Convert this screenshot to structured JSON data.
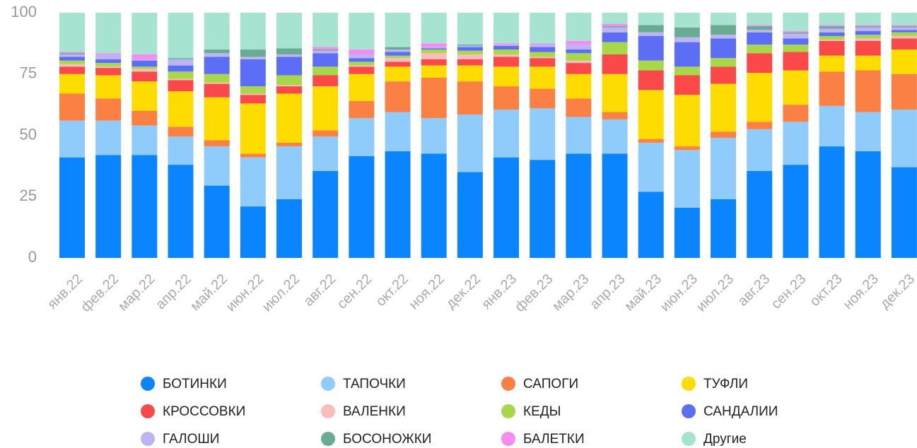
{
  "chart_data": {
    "type": "stacked_bar",
    "categories": [
      "янв.22",
      "фев.22",
      "мар.22",
      "апр.22",
      "май.22",
      "июн.22",
      "июл.22",
      "авг.22",
      "сен.22",
      "окт.22",
      "ноя.22",
      "дек.22",
      "янв.23",
      "фев.23",
      "мар.23",
      "апр.23",
      "май.23",
      "июн.23",
      "июл.23",
      "авг.23",
      "сен.23",
      "окт.23",
      "ноя.23",
      "дек.23"
    ],
    "ylim": [
      0,
      100
    ],
    "yticks": [
      0,
      25,
      50,
      75,
      100
    ],
    "grid": false,
    "legend": "bottom",
    "series": [
      {
        "name": "БОТИНКИ",
        "color": "#0a84ff",
        "values": [
          41,
          42,
          42,
          38,
          29.5,
          21,
          24,
          35.5,
          41.5,
          43.5,
          42.5,
          35,
          41,
          40,
          42.5,
          42.5,
          27,
          20.5,
          24,
          35.5,
          38,
          45.5,
          43.5,
          37
        ]
      },
      {
        "name": "ТАПОЧКИ",
        "color": "#8fcbfb",
        "values": [
          15,
          14,
          12,
          11.5,
          16,
          20,
          21.5,
          14,
          15.5,
          16,
          14.5,
          23.5,
          19.5,
          21,
          15,
          14,
          20,
          23.5,
          25,
          17,
          17.5,
          16.5,
          16,
          23.5
        ]
      },
      {
        "name": "САПОГИ",
        "color": "#fb8044",
        "values": [
          11,
          9,
          6,
          4,
          2.5,
          1.5,
          1.5,
          2.5,
          7,
          12.5,
          16.5,
          13.5,
          9.5,
          8,
          7.5,
          3,
          1.5,
          1.5,
          2.5,
          3,
          7,
          14,
          17,
          14.5
        ]
      },
      {
        "name": "ТУФЛИ",
        "color": "#ffdc00",
        "values": [
          8,
          9.5,
          12,
          14.5,
          17.5,
          20.5,
          20,
          18,
          11,
          6,
          5,
          6.5,
          8,
          9,
          10,
          15.5,
          20,
          21,
          19.5,
          20,
          14,
          6.5,
          6,
          10
        ]
      },
      {
        "name": "КРОССОВКИ",
        "color": "#fb4949",
        "values": [
          3,
          3,
          4,
          4.5,
          5.5,
          3.5,
          3,
          4.5,
          3,
          2,
          2.5,
          2.5,
          4,
          3.5,
          4.5,
          8,
          8,
          8,
          7,
          8,
          7.5,
          6,
          6,
          4.5
        ]
      },
      {
        "name": "ВАЛЕНКИ",
        "color": "#fbbcbc",
        "values": [
          1,
          0.5,
          1,
          0.5,
          0.5,
          0.5,
          0.5,
          0,
          0.5,
          1.5,
          2.5,
          2,
          1,
          0.5,
          1,
          0,
          0,
          0,
          0,
          0,
          0,
          0.5,
          1,
          1
        ]
      },
      {
        "name": "КЕДЫ",
        "color": "#a8d84a",
        "values": [
          1.5,
          1.5,
          1,
          3,
          3.5,
          3,
          4,
          3.5,
          1.5,
          1,
          1.5,
          1.5,
          2,
          2,
          3,
          5,
          4,
          3.5,
          3.5,
          3.5,
          3,
          1.5,
          1.5,
          1.5
        ]
      },
      {
        "name": "САНДАЛИИ",
        "color": "#5b6ef5",
        "values": [
          1.5,
          1.5,
          2.5,
          2.5,
          7,
          11,
          7.5,
          5.5,
          1.5,
          1.5,
          0.5,
          1.5,
          1.5,
          2,
          1.5,
          4,
          10,
          10,
          8,
          5,
          2.5,
          1.5,
          1.5,
          1
        ]
      },
      {
        "name": "ГАЛОШИ",
        "color": "#bcb4f5",
        "values": [
          1,
          2,
          0.5,
          2.5,
          1.5,
          1,
          1,
          1,
          1.5,
          1,
          0.5,
          0.5,
          0.5,
          1,
          2,
          2,
          1.5,
          2,
          1.5,
          1,
          2,
          1.5,
          1.5,
          1
        ]
      },
      {
        "name": "БОСОНОЖКИ",
        "color": "#6aab94",
        "values": [
          0.5,
          0,
          0,
          0.5,
          1.5,
          3,
          2.5,
          0.5,
          0,
          1,
          0,
          0.5,
          0,
          0,
          0,
          0.5,
          3,
          4,
          4,
          1.5,
          0.5,
          1,
          0.5,
          0.5
        ]
      },
      {
        "name": "БАЛЕТКИ",
        "color": "#f78cf0",
        "values": [
          0.5,
          0.5,
          2,
          0,
          0,
          0,
          0,
          1,
          2,
          0,
          1.5,
          0,
          0.5,
          0.5,
          1.5,
          1,
          0,
          0,
          0,
          0.5,
          0.5,
          0.5,
          0.5,
          0.5
        ]
      },
      {
        "name": "Другие",
        "color": "#a6e3d0",
        "values": [
          16,
          16.5,
          17,
          18.5,
          15,
          15,
          14.5,
          14,
          15,
          14,
          12.5,
          13,
          12.5,
          12.5,
          11.5,
          4.5,
          5,
          6,
          5,
          5,
          7.5,
          5,
          5,
          5
        ]
      }
    ]
  }
}
